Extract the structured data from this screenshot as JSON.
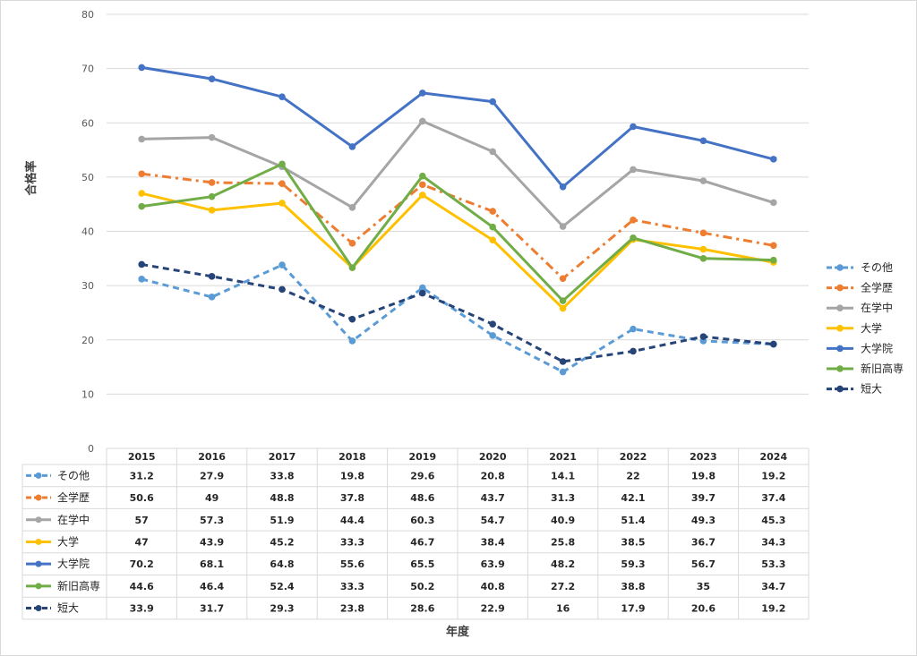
{
  "chart_data": {
    "type": "line",
    "ylabel": "合格率",
    "xlabel": "年度",
    "ylim": [
      0,
      80
    ],
    "yticks": [
      "0",
      "10",
      "20",
      "30",
      "40",
      "50",
      "60",
      "70",
      "80"
    ],
    "grid": true,
    "legend_position": "right",
    "data_table": true,
    "categories": [
      "2015",
      "2016",
      "2017",
      "2018",
      "2019",
      "2020",
      "2021",
      "2022",
      "2023",
      "2024"
    ],
    "series": [
      {
        "name": "その他",
        "color": "#5b9bd5",
        "dash": "dashed",
        "values": [
          31.2,
          27.9,
          33.8,
          19.8,
          29.6,
          20.8,
          14.1,
          22,
          19.8,
          19.2
        ]
      },
      {
        "name": "全学歴",
        "color": "#ed7d31",
        "dash": "dash-dot",
        "values": [
          50.6,
          49,
          48.8,
          37.8,
          48.6,
          43.7,
          31.3,
          42.1,
          39.7,
          37.4
        ]
      },
      {
        "name": "在学中",
        "color": "#a5a5a5",
        "dash": "solid",
        "values": [
          57,
          57.3,
          51.9,
          44.4,
          60.3,
          54.7,
          40.9,
          51.4,
          49.3,
          45.3
        ]
      },
      {
        "name": "大学",
        "color": "#ffc000",
        "dash": "solid",
        "values": [
          47,
          43.9,
          45.2,
          33.3,
          46.7,
          38.4,
          25.8,
          38.5,
          36.7,
          34.3
        ]
      },
      {
        "name": "大学院",
        "color": "#4472c4",
        "dash": "solid",
        "values": [
          70.2,
          68.1,
          64.8,
          55.6,
          65.5,
          63.9,
          48.2,
          59.3,
          56.7,
          53.3
        ]
      },
      {
        "name": "新旧高専",
        "color": "#70ad47",
        "dash": "solid",
        "values": [
          44.6,
          46.4,
          52.4,
          33.3,
          50.2,
          40.8,
          27.2,
          38.8,
          35,
          34.7
        ]
      },
      {
        "name": "短大",
        "color": "#264478",
        "dash": "dashed",
        "values": [
          33.9,
          31.7,
          29.3,
          23.8,
          28.6,
          22.9,
          16,
          17.9,
          20.6,
          19.2
        ]
      }
    ]
  }
}
